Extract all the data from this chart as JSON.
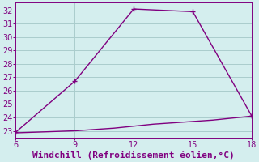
{
  "xlabel": "Windchill (Refroidissement éolien,°C)",
  "x_upper": [
    6,
    9,
    12,
    15,
    18
  ],
  "y_upper": [
    22.9,
    26.7,
    32.1,
    31.9,
    24.1
  ],
  "x_lower": [
    6,
    7,
    8,
    9,
    10,
    11,
    12,
    13,
    14,
    15,
    16,
    17,
    18
  ],
  "y_lower": [
    22.85,
    22.9,
    22.95,
    23.0,
    23.1,
    23.2,
    23.35,
    23.5,
    23.6,
    23.7,
    23.8,
    23.95,
    24.1
  ],
  "line_color": "#800080",
  "bg_color": "#d4eeee",
  "grid_color": "#aacccc",
  "yticks": [
    23,
    24,
    25,
    26,
    27,
    28,
    29,
    30,
    31,
    32
  ],
  "xticks": [
    6,
    9,
    12,
    15,
    18
  ],
  "xlim": [
    6,
    18
  ],
  "ylim": [
    22.5,
    32.6
  ],
  "marker": "+",
  "marker_size": 4,
  "line_width": 1.0,
  "xlabel_color": "#800080",
  "xlabel_fontsize": 8,
  "tick_fontsize": 7,
  "tick_color": "#800080"
}
